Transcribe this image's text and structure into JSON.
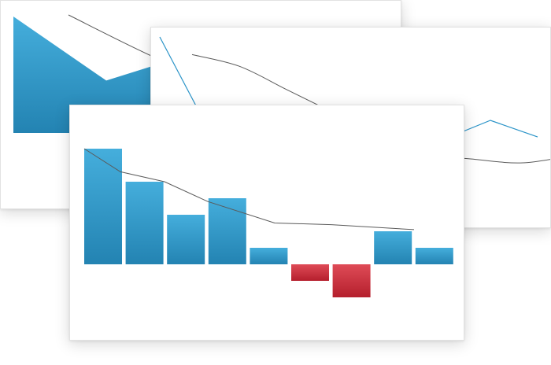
{
  "colors": {
    "positive_top": "#45aedc",
    "positive_bottom": "#2383b2",
    "negative_top": "#df4b57",
    "negative_bottom": "#b51f2d",
    "line_stroke": "#5a5a5a",
    "middle_line": "#2b94c8"
  },
  "chart_data": [
    {
      "type": "area",
      "series": [
        {
          "values": [
            100,
            45,
            70,
            40
          ]
        },
        {
          "type": "line",
          "values": [
            115,
            70,
            35,
            5
          ]
        }
      ],
      "grid": false,
      "axes_visible": false
    },
    {
      "type": "line",
      "series": [
        {
          "values": [
            100,
            30,
            42,
            10,
            5,
            28,
            20,
            35,
            22
          ]
        },
        {
          "values": [
            95,
            85,
            65,
            45,
            25,
            10,
            5,
            2,
            8
          ]
        }
      ],
      "grid": false,
      "axes_visible": false
    },
    {
      "type": "bar",
      "values": [
        7,
        5,
        3,
        4,
        1,
        -1,
        -2,
        2,
        1
      ],
      "series": [
        {
          "type": "line",
          "values": [
            7,
            5.6,
            5,
            3.8,
            2.5,
            2.4,
            2.1
          ]
        }
      ],
      "zero_line": true,
      "grid": false,
      "axes_visible": false
    }
  ]
}
